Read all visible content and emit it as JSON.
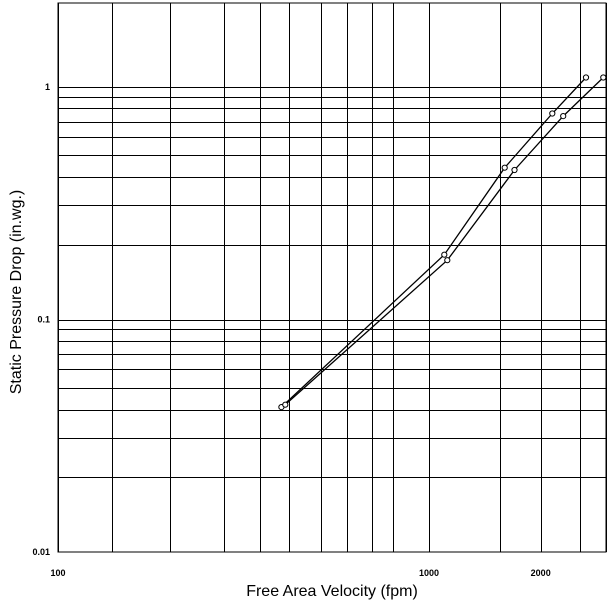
{
  "chart_data": {
    "type": "line",
    "xlabel": "Free Area Velocity (fpm)",
    "ylabel": "Static Pressure Drop (in.wg.)",
    "x_scale": "log",
    "y_scale": "log",
    "xlim": [
      100,
      3000
    ],
    "ylim": [
      0.01,
      2.3
    ],
    "x_ticks": [
      {
        "value": 100,
        "label": "100"
      },
      {
        "value": 1000,
        "label": "1000"
      },
      {
        "value": 2000,
        "label": "2000"
      }
    ],
    "y_ticks": [
      {
        "value": 0.01,
        "label": "0.01"
      },
      {
        "value": 0.1,
        "label": "0.1"
      },
      {
        "value": 1,
        "label": "1"
      }
    ],
    "x_gridlines": [
      100,
      140,
      200,
      280,
      350,
      420,
      510,
      600,
      700,
      800,
      1000,
      1550,
      2000,
      2550,
      3000
    ],
    "y_gridlines": [
      0.021,
      0.031,
      0.041,
      0.051,
      0.061,
      0.071,
      0.081,
      0.091,
      0.1,
      0.21,
      0.31,
      0.41,
      0.51,
      0.61,
      0.71,
      0.81,
      0.91,
      1
    ],
    "grid": true,
    "legend": "none",
    "series": [
      {
        "x": [
          400,
          1100,
          1600,
          2150,
          2650
        ],
        "y": [
          0.042,
          0.19,
          0.45,
          0.77,
          1.1
        ]
      },
      {
        "x": [
          410,
          1120,
          1700,
          2300,
          2950
        ],
        "y": [
          0.043,
          0.18,
          0.44,
          0.75,
          1.1
        ]
      }
    ]
  }
}
